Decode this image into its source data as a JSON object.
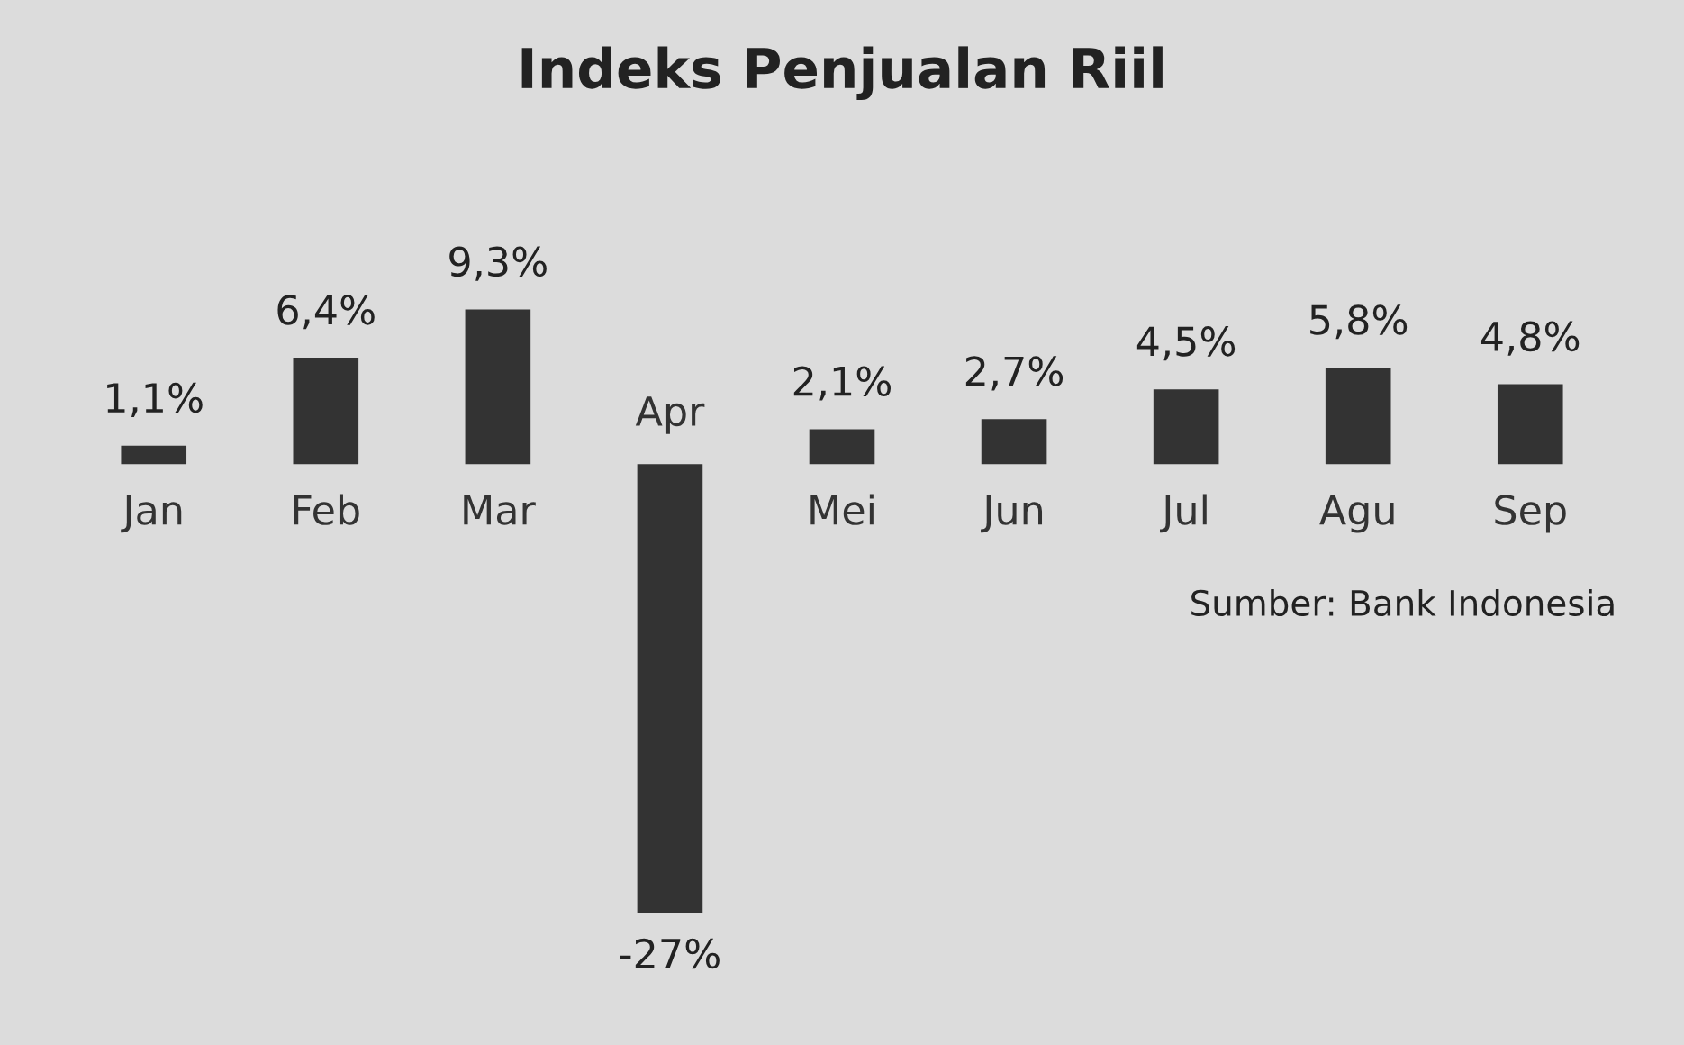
{
  "chart_data": {
    "type": "bar",
    "title": "Indeks Penjualan Riil",
    "categories": [
      "Jan",
      "Feb",
      "Mar",
      "Apr",
      "Mei",
      "Jun",
      "Jul",
      "Agu",
      "Sep"
    ],
    "values": [
      1.1,
      6.4,
      9.3,
      -27,
      2.1,
      2.7,
      4.5,
      5.8,
      4.8
    ],
    "value_labels": [
      "1,1%",
      "6,4%",
      "9,3%",
      "-27%",
      "2,1%",
      "2,7%",
      "4,5%",
      "5,8%",
      "4,8%"
    ],
    "color": "#333333",
    "annotations": [
      "Sumber: Bank Indonesia"
    ]
  }
}
